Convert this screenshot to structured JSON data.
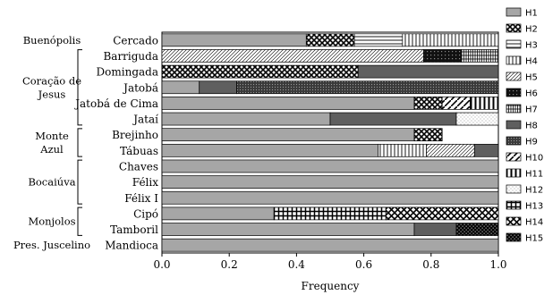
{
  "chart_data": {
    "type": "bar",
    "orientation": "horizontal",
    "stacked": true,
    "xlabel": "Frequency",
    "xlim": [
      0,
      1
    ],
    "x_ticks": [
      "0.0",
      "0.2",
      "0.4",
      "0.6",
      "0.8",
      "1.0"
    ],
    "categories": [
      "Cercado",
      "Barriguda",
      "Domingada",
      "Jatobá",
      "Jatobá de Cima",
      "Jataí",
      "Brejinho",
      "Tábuas",
      "Chaves",
      "Félix",
      "Félix I",
      "Cipó",
      "Tamboril",
      "Mandioca"
    ],
    "groups": [
      {
        "name": "Buenópolis",
        "categories": [
          "Cercado"
        ]
      },
      {
        "name": "Coração de Jesus",
        "categories": [
          "Barriguda",
          "Domingada",
          "Jatobá",
          "Jatobá de Cima",
          "Jataí"
        ]
      },
      {
        "name": "Monte Azul",
        "categories": [
          "Brejinho",
          "Tábuas"
        ]
      },
      {
        "name": "Bocaiúva",
        "categories": [
          "Chaves",
          "Félix",
          "Félix I"
        ]
      },
      {
        "name": "Monjolos",
        "categories": [
          "Cipó",
          "Tamboril"
        ]
      },
      {
        "name": "Pres. Juscelino",
        "categories": [
          "Mandioca"
        ]
      }
    ],
    "legend": [
      "H1",
      "H2",
      "H3",
      "H4",
      "H5",
      "H6",
      "H7",
      "H8",
      "H9",
      "H10",
      "H11",
      "H12",
      "H13",
      "H14",
      "H15"
    ],
    "legend_position": "right",
    "bars": [
      {
        "category": "Cercado",
        "segments": [
          {
            "h": "H1",
            "v": 0.429
          },
          {
            "h": "H2",
            "v": 0.143
          },
          {
            "h": "H3",
            "v": 0.143
          },
          {
            "h": "H4",
            "v": 0.285
          }
        ]
      },
      {
        "category": "Barriguda",
        "segments": [
          {
            "h": "H5",
            "v": 0.778
          },
          {
            "h": "H6",
            "v": 0.111
          },
          {
            "h": "H7",
            "v": 0.111
          }
        ]
      },
      {
        "category": "Domingada",
        "segments": [
          {
            "h": "H2",
            "v": 0.583
          },
          {
            "h": "H8",
            "v": 0.417
          }
        ]
      },
      {
        "category": "Jatobá",
        "segments": [
          {
            "h": "H1",
            "v": 0.111
          },
          {
            "h": "H8",
            "v": 0.111
          },
          {
            "h": "H9",
            "v": 0.778
          }
        ]
      },
      {
        "category": "Jatobá de Cima",
        "segments": [
          {
            "h": "H1",
            "v": 0.75
          },
          {
            "h": "H2",
            "v": 0.083
          },
          {
            "h": "H10",
            "v": 0.083
          },
          {
            "h": "H11",
            "v": 0.084
          }
        ]
      },
      {
        "category": "Jataí",
        "segments": [
          {
            "h": "H1",
            "v": 0.5
          },
          {
            "h": "H8",
            "v": 0.375
          },
          {
            "h": "H12",
            "v": 0.125
          }
        ]
      },
      {
        "category": "Brejinho",
        "segments": [
          {
            "h": "H1",
            "v": 0.75
          },
          {
            "h": "H2",
            "v": 0.083
          }
        ]
      },
      {
        "category": "Tábuas",
        "segments": [
          {
            "h": "H1",
            "v": 0.643
          },
          {
            "h": "H4",
            "v": 0.143
          },
          {
            "h": "H5",
            "v": 0.143
          },
          {
            "h": "H8",
            "v": 0.071
          }
        ]
      },
      {
        "category": "Chaves",
        "segments": [
          {
            "h": "H1",
            "v": 1.0
          }
        ]
      },
      {
        "category": "Félix",
        "segments": [
          {
            "h": "H1",
            "v": 1.0
          }
        ]
      },
      {
        "category": "Félix I",
        "segments": [
          {
            "h": "H1",
            "v": 1.0
          }
        ]
      },
      {
        "category": "Cipó",
        "segments": [
          {
            "h": "H1",
            "v": 0.333
          },
          {
            "h": "H13",
            "v": 0.333
          },
          {
            "h": "H14",
            "v": 0.334
          }
        ]
      },
      {
        "category": "Tamboril",
        "segments": [
          {
            "h": "H1",
            "v": 0.75
          },
          {
            "h": "H8",
            "v": 0.125
          },
          {
            "h": "H15",
            "v": 0.125
          }
        ]
      },
      {
        "category": "Mandioca",
        "segments": [
          {
            "h": "H1",
            "v": 1.0
          }
        ]
      }
    ],
    "colors": {
      "fill_gray": "#a6a6a6",
      "dark_gray": "#5f5f5f",
      "outline": "#000000"
    }
  }
}
